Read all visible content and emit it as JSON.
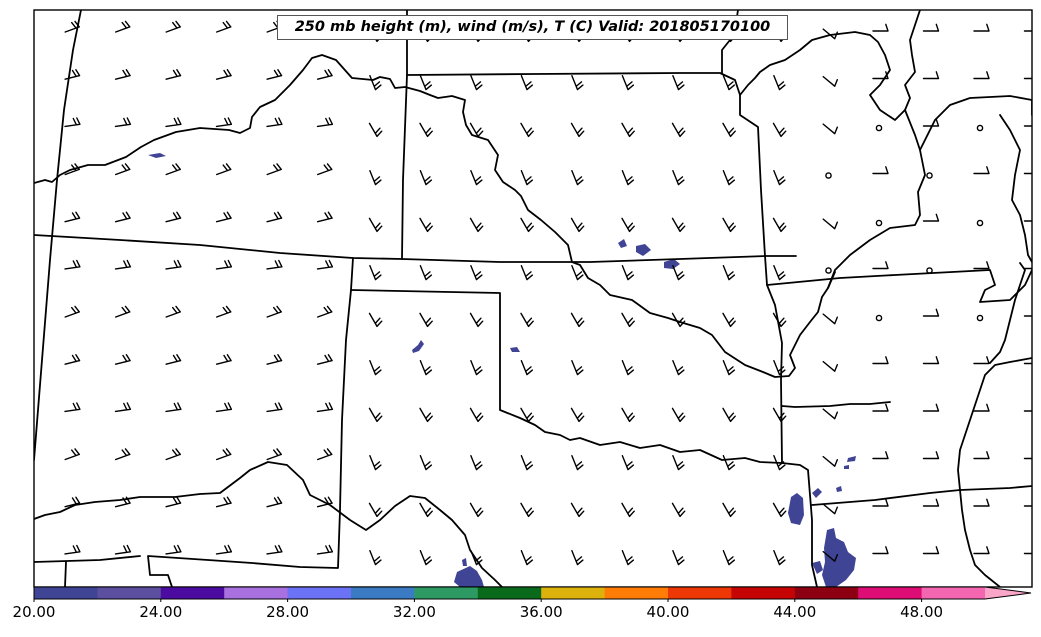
{
  "map": {
    "title": "250 mb height (m), wind (m/s), T (C) Valid: 201805170100"
  },
  "colorbar": {
    "min": 20.0,
    "max": 50.0,
    "extend": "max",
    "colors": [
      "#404495",
      "#5d4fa0",
      "#4b0ba0",
      "#a970e0",
      "#6c72f5",
      "#3a7bc4",
      "#2e9a63",
      "#0a6a1c",
      "#ddb20c",
      "#ff7d07",
      "#ed3705",
      "#c70404",
      "#8c0012",
      "#de0c75",
      "#f466b0",
      "#f9a6c9"
    ],
    "tick_labels": [
      "20.00",
      "24.00",
      "28.00",
      "32.00",
      "36.00",
      "40.00",
      "44.00",
      "48.00"
    ],
    "tick_values": [
      20,
      24,
      28,
      32,
      36,
      40,
      44,
      48
    ]
  }
}
